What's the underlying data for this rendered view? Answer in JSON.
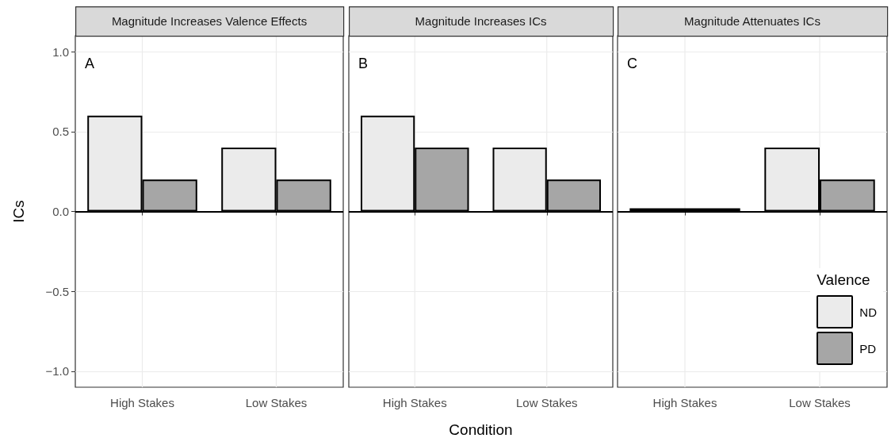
{
  "chart_data": [
    {
      "type": "bar",
      "title": "Magnitude Increases Valence Effects",
      "ylabel": "ICs",
      "annotations": [
        "A"
      ],
      "categories": [
        "High Stakes",
        "Low Stakes"
      ],
      "series": [
        {
          "color": "#ebebeb",
          "values": [
            0.6,
            0.4
          ]
        },
        {
          "color": "#a6a6a6",
          "values": [
            0.2,
            0.2
          ]
        }
      ],
      "ylim": [
        -1.1,
        1.1
      ],
      "yticks": [
        {
          "value": -1,
          "label": "−1.0"
        },
        {
          "value": -0.5,
          "label": "−0.5"
        },
        {
          "value": 0,
          "label": "0.0"
        },
        {
          "value": 0.5,
          "label": "0.5"
        },
        {
          "value": 1,
          "label": "1.0"
        }
      ],
      "grid": true,
      "ref_lines": [
        {
          "axis": "y",
          "value": 0,
          "color": "#000000"
        }
      ]
    },
    {
      "type": "bar",
      "title": "Magnitude Increases ICs",
      "xlabel": "Condition",
      "annotations": [
        "B"
      ],
      "categories": [
        "High Stakes",
        "Low Stakes"
      ],
      "series": [
        {
          "color": "#ebebeb",
          "values": [
            0.6,
            0.4
          ]
        },
        {
          "color": "#a6a6a6",
          "values": [
            0.4,
            0.2
          ]
        }
      ],
      "ylim": [
        -1.1,
        1.1
      ],
      "yticks": [
        -1,
        -0.5,
        0,
        0.5,
        1
      ],
      "grid": true,
      "tick_labels": "x",
      "ref_lines": [
        {
          "axis": "y",
          "value": 0,
          "color": "#000000"
        }
      ]
    },
    {
      "type": "bar",
      "title": "Magnitude Attenuates ICs",
      "annotations": [
        "C"
      ],
      "categories": [
        "High Stakes",
        "Low Stakes"
      ],
      "legend": "bottom right",
      "legend_title": "Valence",
      "series": [
        {
          "name": "ND",
          "color": "#ebebeb",
          "values": [
            0.02,
            0.4
          ]
        },
        {
          "name": "PD",
          "color": "#a6a6a6",
          "values": [
            0.02,
            0.2
          ]
        }
      ],
      "ylim": [
        -1.1,
        1.1
      ],
      "yticks": [
        -1,
        -0.5,
        0,
        0.5,
        1
      ],
      "grid": true,
      "tick_labels": "x",
      "ref_lines": [
        {
          "axis": "y",
          "value": 0,
          "color": "#000000"
        }
      ]
    }
  ]
}
